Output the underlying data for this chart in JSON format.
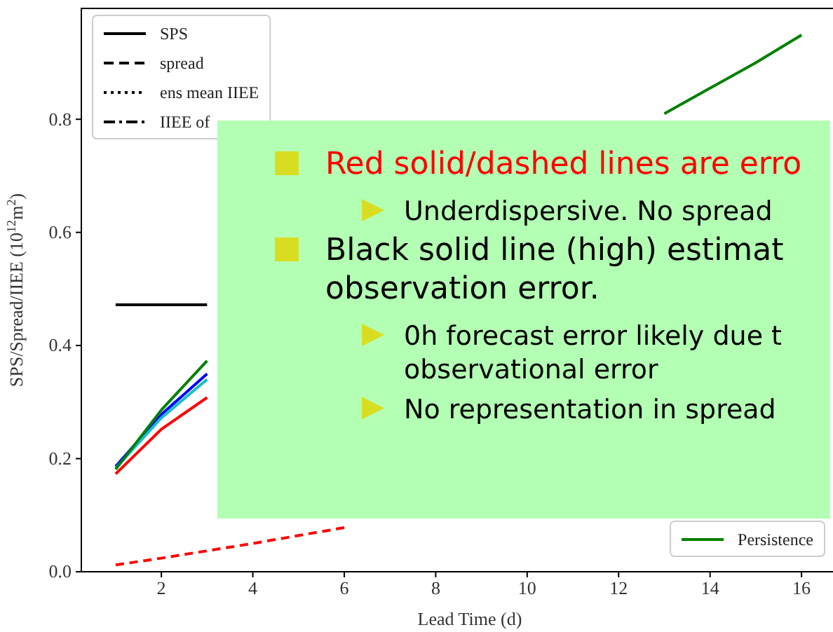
{
  "chart_data": {
    "type": "line",
    "xlabel": "Lead Time (d)",
    "ylabel": "SPS/Spread/IIEE (10$^{12}$m$^{2}$)",
    "x": [
      1,
      2,
      3,
      4,
      5,
      6,
      7,
      8,
      9,
      10,
      11,
      12,
      13,
      14,
      15,
      16
    ],
    "xlim": [
      0.25,
      16.75
    ],
    "xticks": [
      2,
      4,
      6,
      8,
      10,
      12,
      14,
      16
    ],
    "ylim": [
      0,
      0.996
    ],
    "yticks": [
      {
        "value": 0,
        "label": "0.0"
      },
      0.2,
      0.4,
      0.6,
      0.8
    ],
    "legend": "top left",
    "grid": false,
    "series": [
      {
        "name": "SPS",
        "color": "#000000",
        "line_style": "solid",
        "values": [
          0.472,
          0.472,
          0.472,
          null,
          null,
          null,
          null,
          null,
          null,
          null,
          null,
          null,
          null,
          null,
          null,
          null
        ]
      },
      {
        "name": "spread",
        "color": "#000000",
        "line_style": "dashed",
        "values": [
          null,
          null,
          null,
          null,
          null,
          null,
          null,
          null,
          null,
          null,
          null,
          null,
          null,
          null,
          null,
          null
        ]
      },
      {
        "name": "ens mean IIEE",
        "color": "#000000",
        "line_style": "dotted",
        "values": [
          null,
          null,
          null,
          null,
          null,
          null,
          null,
          null,
          null,
          null,
          null,
          null,
          null,
          null,
          null,
          null
        ]
      },
      {
        "name": "IIEE of",
        "color": "#000000",
        "line_style": "dashdot",
        "values": [
          null,
          null,
          null,
          null,
          null,
          null,
          null,
          null,
          null,
          null,
          null,
          null,
          null,
          null,
          null,
          null
        ]
      },
      {
        "color": "#0000ff",
        "values": [
          0.186,
          0.278,
          0.35,
          null,
          null,
          null,
          null,
          null,
          null,
          null,
          null,
          null,
          null,
          null,
          null,
          null
        ]
      },
      {
        "color": "#17becf",
        "values": [
          0.183,
          0.272,
          0.34,
          null,
          null,
          null,
          null,
          null,
          null,
          null,
          null,
          null,
          null,
          null,
          null,
          null
        ]
      },
      {
        "color": "#ff0000",
        "values": [
          0.173,
          0.252,
          0.308,
          null,
          null,
          null,
          null,
          null,
          null,
          null,
          null,
          null,
          null,
          null,
          null,
          null
        ]
      },
      {
        "color": "#ff0000",
        "line_style": "dashed",
        "values": [
          0.012,
          0.024,
          0.037,
          0.05,
          0.064,
          0.078,
          null,
          null,
          null,
          null,
          null,
          null,
          null,
          null,
          null,
          null
        ]
      },
      {
        "name": "Persistence",
        "color": "#008000",
        "values": [
          0.181,
          0.286,
          0.373,
          null,
          null,
          null,
          null,
          null,
          null,
          null,
          null,
          null,
          0.81,
          0.855,
          0.9,
          0.949
        ]
      }
    ],
    "annotations": [
      "Red solid/dashed lines are erro",
      "Underdispersive. No spread",
      "Black solid line (high) estimat observation error.",
      "0h forecast error likely due t observational error",
      "No representation in spread"
    ]
  }
}
